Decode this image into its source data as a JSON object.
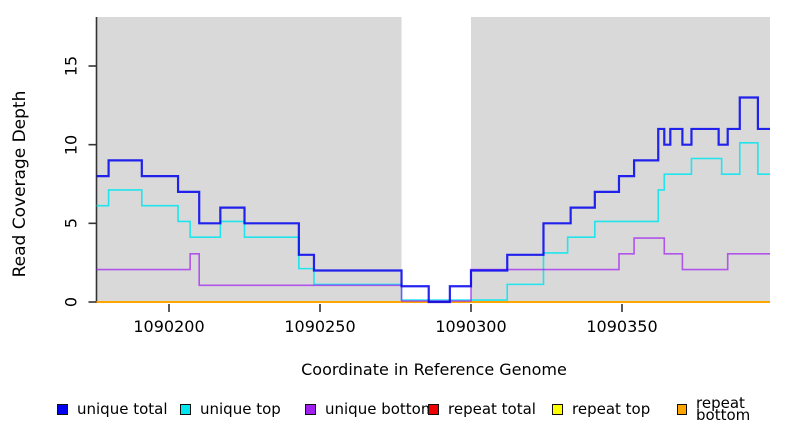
{
  "chart_data": {
    "type": "line",
    "step": true,
    "xlabel": "Coordinate in Reference Genome",
    "ylabel": "Read Coverage Depth",
    "xlim": [
      1090176,
      1090399
    ],
    "ylim": [
      0,
      18.1
    ],
    "grid": false,
    "plot_bg": "#d9d9d9",
    "shaded_x_ranges": [
      [
        1090176,
        1090277
      ],
      [
        1090300,
        1090399
      ]
    ],
    "unshaded_gap_x": [
      1090277,
      1090300
    ],
    "x_ticks": [
      {
        "value": 1090200,
        "label": "1090200"
      },
      {
        "value": 1090250,
        "label": "1090250"
      },
      {
        "value": 1090300,
        "label": "1090300"
      },
      {
        "value": 1090350,
        "label": "1090350"
      }
    ],
    "y_ticks": [
      {
        "value": 0,
        "label": "0"
      },
      {
        "value": 5,
        "label": "5"
      },
      {
        "value": 10,
        "label": "10"
      },
      {
        "value": 15,
        "label": "15"
      }
    ],
    "legend_position": "bottom",
    "series": [
      {
        "name": "unique total",
        "color": "#0000EE",
        "steps": [
          [
            1090176,
            8
          ],
          [
            1090180,
            9
          ],
          [
            1090191,
            8
          ],
          [
            1090203,
            7
          ],
          [
            1090210,
            5
          ],
          [
            1090217,
            6
          ],
          [
            1090225,
            5
          ],
          [
            1090243,
            3
          ],
          [
            1090248,
            2
          ],
          [
            1090277,
            1
          ],
          [
            1090286,
            0
          ],
          [
            1090293,
            1
          ],
          [
            1090300,
            2
          ],
          [
            1090312,
            3
          ],
          [
            1090324,
            5
          ],
          [
            1090333,
            6
          ],
          [
            1090341,
            7
          ],
          [
            1090349,
            8
          ],
          [
            1090354,
            9
          ],
          [
            1090362,
            11
          ],
          [
            1090364,
            10
          ],
          [
            1090366,
            11
          ],
          [
            1090370,
            10
          ],
          [
            1090373,
            11
          ],
          [
            1090382,
            10
          ],
          [
            1090385,
            11
          ],
          [
            1090389,
            13
          ],
          [
            1090395,
            11
          ]
        ]
      },
      {
        "name": "unique top",
        "color": "#00E5EE",
        "steps": [
          [
            1090176,
            6
          ],
          [
            1090180,
            7
          ],
          [
            1090191,
            6
          ],
          [
            1090203,
            5
          ],
          [
            1090207,
            4
          ],
          [
            1090217,
            5
          ],
          [
            1090225,
            4
          ],
          [
            1090243,
            2
          ],
          [
            1090248,
            1
          ],
          [
            1090277,
            0
          ],
          [
            1090312,
            1
          ],
          [
            1090324,
            3
          ],
          [
            1090332,
            4
          ],
          [
            1090341,
            5
          ],
          [
            1090362,
            7
          ],
          [
            1090364,
            8
          ],
          [
            1090373,
            9
          ],
          [
            1090383,
            8
          ],
          [
            1090389,
            10
          ],
          [
            1090395,
            8
          ]
        ]
      },
      {
        "name": "unique bottom",
        "color": "#A020F0",
        "steps": [
          [
            1090176,
            2
          ],
          [
            1090207,
            3
          ],
          [
            1090210,
            1
          ],
          [
            1090277,
            0
          ],
          [
            1090300,
            2
          ],
          [
            1090349,
            3
          ],
          [
            1090354,
            4
          ],
          [
            1090364,
            3
          ],
          [
            1090370,
            2
          ],
          [
            1090385,
            3
          ]
        ]
      },
      {
        "name": "repeat total",
        "color": "#EE0000",
        "steps": [
          [
            1090176,
            0
          ]
        ]
      },
      {
        "name": "repeat top",
        "color": "#FFFF00",
        "steps": [
          [
            1090176,
            0
          ]
        ]
      },
      {
        "name": "repeat bottom",
        "color": "#FFA500",
        "steps": [
          [
            1090176,
            0
          ]
        ]
      }
    ]
  }
}
